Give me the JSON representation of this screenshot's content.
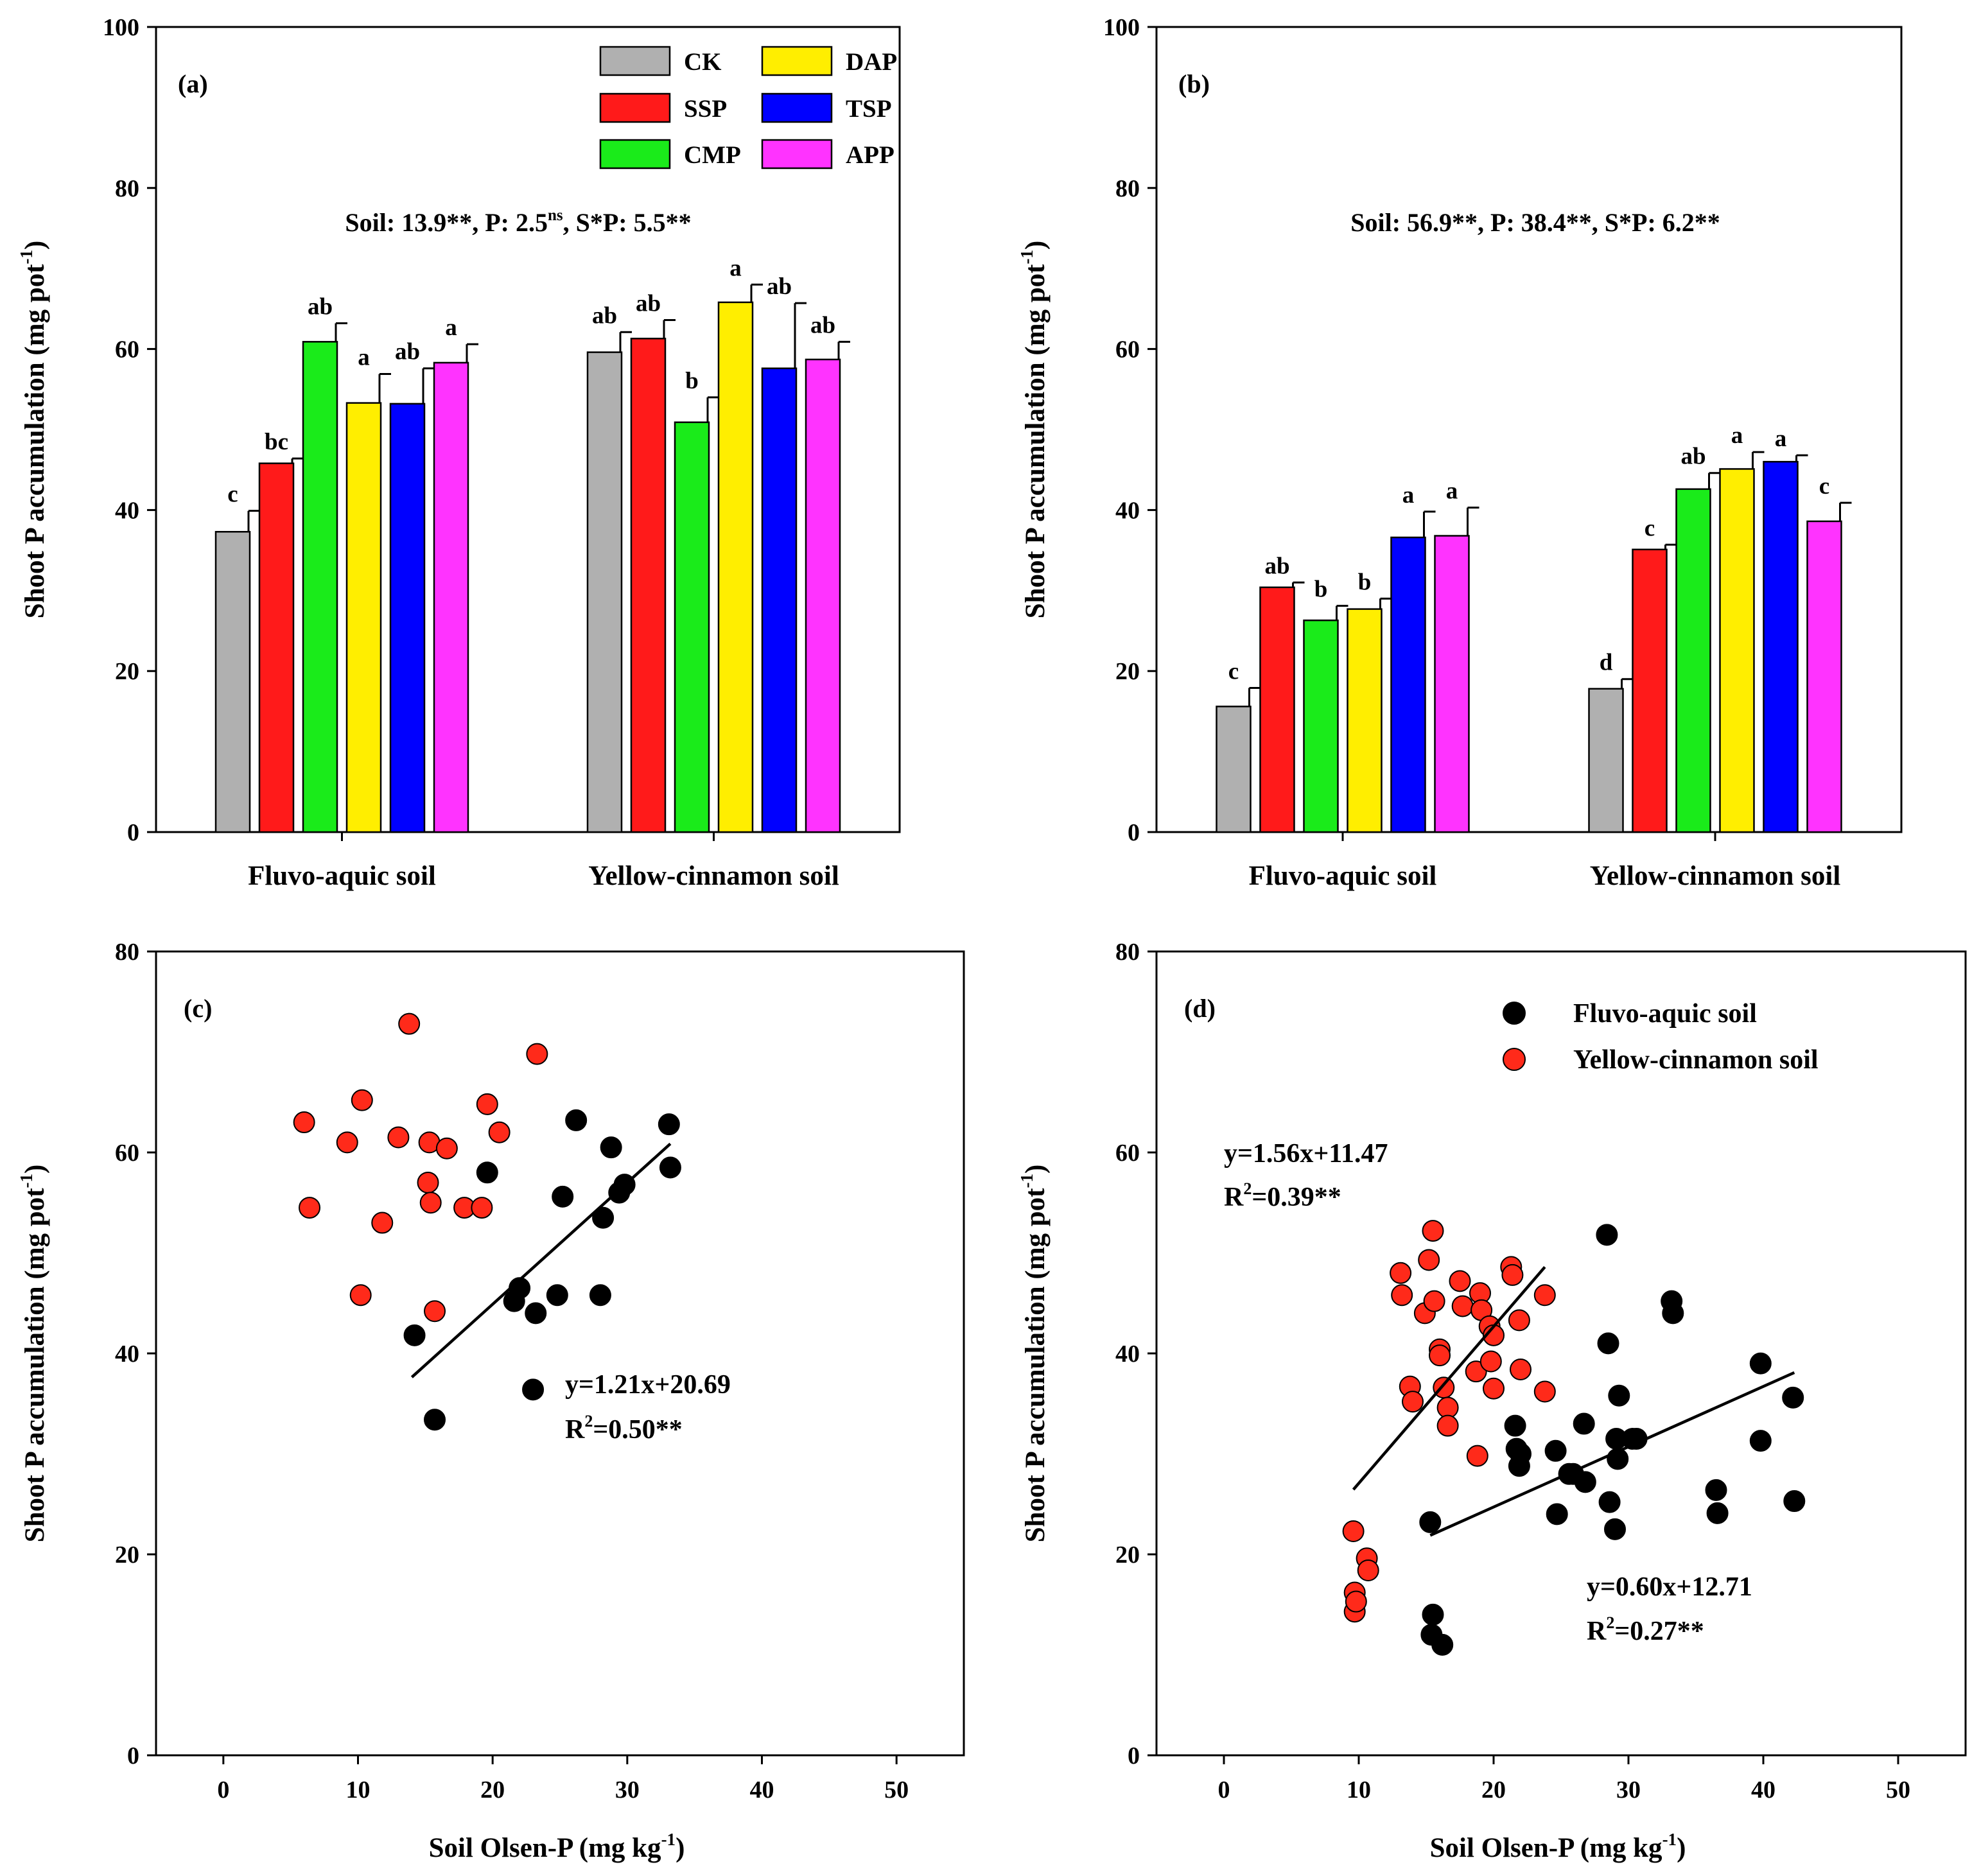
{
  "chart_data": [
    {
      "type": "bar",
      "panel_label": "(a)",
      "ylabel": "Shoot P accumulation (mg pot",
      "ylabel_sup": "-1",
      "ylabel_close": ")",
      "ylim": [
        0,
        100
      ],
      "yticks": [
        0,
        20,
        40,
        60,
        80,
        100
      ],
      "categories": [
        "Fluvo-aquic soil",
        "Yellow-cinnamon soil"
      ],
      "annotation": {
        "a": "Soil: 13.9**, P: 2.5",
        "sup": "ns",
        "b": ", S*P: 5.5**"
      },
      "legend": [
        {
          "name": "CK",
          "color": "#b0b0b0"
        },
        {
          "name": "DAP",
          "color": "#ffee00"
        },
        {
          "name": "SSP",
          "color": "#ff1a1a"
        },
        {
          "name": "TSP",
          "color": "#0000ff"
        },
        {
          "name": "CMP",
          "color": "#1aeb1a"
        },
        {
          "name": "APP",
          "color": "#ff33ff"
        }
      ],
      "series": [
        {
          "name": "CK",
          "color": "#b0b0b0",
          "values": [
            37.3,
            59.6
          ],
          "errors": [
            2.6,
            2.5
          ],
          "letters": [
            "c",
            "ab"
          ]
        },
        {
          "name": "SSP",
          "color": "#ff1a1a",
          "values": [
            45.8,
            61.3
          ],
          "errors": [
            0.6,
            2.3
          ],
          "letters": [
            "bc",
            "ab"
          ]
        },
        {
          "name": "CMP",
          "color": "#1aeb1a",
          "values": [
            60.9,
            50.9
          ],
          "errors": [
            2.3,
            3.1
          ],
          "letters": [
            "ab",
            "b"
          ]
        },
        {
          "name": "DAP",
          "color": "#ffee00",
          "values": [
            53.3,
            65.8
          ],
          "errors": [
            3.6,
            2.2
          ],
          "letters": [
            "a",
            "a"
          ]
        },
        {
          "name": "TSP",
          "color": "#0000ff",
          "values": [
            53.2,
            57.6
          ],
          "errors": [
            4.4,
            8.1
          ],
          "letters": [
            "ab",
            "ab"
          ]
        },
        {
          "name": "APP",
          "color": "#ff33ff",
          "values": [
            58.3,
            58.7
          ],
          "errors": [
            2.3,
            2.2
          ],
          "letters": [
            "a",
            "ab"
          ]
        }
      ]
    },
    {
      "type": "bar",
      "panel_label": "(b)",
      "ylabel": "Shoot P accumulation (mg pot",
      "ylabel_sup": "-1",
      "ylabel_close": ")",
      "ylim": [
        0,
        100
      ],
      "yticks": [
        0,
        20,
        40,
        60,
        80,
        100
      ],
      "categories": [
        "Fluvo-aquic soil",
        "Yellow-cinnamon soil"
      ],
      "annotation": {
        "a": "Soil: 56.9**, P: 38.4**, S*P: 6.2**",
        "sup": "",
        "b": ""
      },
      "series": [
        {
          "name": "CK",
          "color": "#b0b0b0",
          "values": [
            15.6,
            17.8
          ],
          "errors": [
            2.3,
            1.2
          ],
          "letters": [
            "c",
            "d"
          ]
        },
        {
          "name": "SSP",
          "color": "#ff1a1a",
          "values": [
            30.4,
            35.1
          ],
          "errors": [
            0.6,
            0.6
          ],
          "letters": [
            "ab",
            "c"
          ]
        },
        {
          "name": "CMP",
          "color": "#1aeb1a",
          "values": [
            26.3,
            42.6
          ],
          "errors": [
            1.8,
            2.0
          ],
          "letters": [
            "b",
            "ab"
          ]
        },
        {
          "name": "DAP",
          "color": "#ffee00",
          "values": [
            27.7,
            45.1
          ],
          "errors": [
            1.3,
            2.1
          ],
          "letters": [
            "b",
            "a"
          ]
        },
        {
          "name": "TSP",
          "color": "#0000ff",
          "values": [
            36.6,
            46.0
          ],
          "errors": [
            3.2,
            0.8
          ],
          "letters": [
            "a",
            "a"
          ]
        },
        {
          "name": "APP",
          "color": "#ff33ff",
          "values": [
            36.8,
            38.6
          ],
          "errors": [
            3.5,
            2.3
          ],
          "letters": [
            "a",
            "c"
          ]
        }
      ]
    },
    {
      "type": "scatter",
      "panel_label": "(c)",
      "xlabel": "Soil Olsen-P (mg kg",
      "xlabel_sup": "-1",
      "xlabel_close": ")",
      "ylabel": "Shoot P accumulation (mg pot",
      "ylabel_sup": "-1",
      "ylabel_close": ")",
      "xlim": [
        -5,
        55
      ],
      "ylim": [
        0,
        80
      ],
      "xticks": [
        0,
        10,
        20,
        30,
        40,
        50
      ],
      "yticks": [
        0,
        20,
        40,
        60,
        80
      ],
      "series": [
        {
          "name": "Yellow-cinnamon soil",
          "color": "#ff2a1a",
          "points": [
            [
              6.0,
              63.0
            ],
            [
              6.4,
              54.5
            ],
            [
              9.2,
              61.0
            ],
            [
              10.3,
              65.2
            ],
            [
              10.2,
              45.8
            ],
            [
              11.8,
              53.0
            ],
            [
              13.0,
              61.5
            ],
            [
              13.8,
              72.8
            ],
            [
              15.2,
              57.0
            ],
            [
              15.3,
              61.0
            ],
            [
              15.4,
              55.0
            ],
            [
              15.7,
              44.2
            ],
            [
              16.6,
              60.4
            ],
            [
              17.9,
              54.5
            ],
            [
              19.2,
              54.5
            ],
            [
              19.6,
              64.8
            ],
            [
              20.5,
              62.0
            ],
            [
              23.3,
              69.8
            ]
          ]
        },
        {
          "name": "Fluvo-aquic soil",
          "color": "#000000",
          "points": [
            [
              14.2,
              41.8
            ],
            [
              15.7,
              33.4
            ],
            [
              19.6,
              58.0
            ],
            [
              21.6,
              45.2
            ],
            [
              22.0,
              46.5
            ],
            [
              23.0,
              36.4
            ],
            [
              23.2,
              44.0
            ],
            [
              24.8,
              45.8
            ],
            [
              25.2,
              55.6
            ],
            [
              26.2,
              63.2
            ],
            [
              28.0,
              45.8
            ],
            [
              28.2,
              53.5
            ],
            [
              28.8,
              60.5
            ],
            [
              29.4,
              56.0
            ],
            [
              29.8,
              56.8
            ],
            [
              33.1,
              62.8
            ],
            [
              33.2,
              58.5
            ]
          ]
        }
      ],
      "fits": [
        {
          "color": "#000000",
          "slope": 1.21,
          "intercept": 20.69,
          "x_range": [
            14,
            33.2
          ],
          "eq": "y=1.21x+20.69",
          "r2_lead": "R",
          "r2_sup": "2",
          "r2_tail": "=0.50**"
        }
      ]
    },
    {
      "type": "scatter",
      "panel_label": "(d)",
      "xlabel": "Soil Olsen-P (mg kg",
      "xlabel_sup": "-1",
      "xlabel_close": ")",
      "ylabel": "Shoot P accumulation (mg pot",
      "ylabel_sup": "-1",
      "ylabel_close": ")",
      "xlim": [
        -5,
        55
      ],
      "ylim": [
        0,
        80
      ],
      "xticks": [
        0,
        10,
        20,
        30,
        40,
        50
      ],
      "yticks": [
        0,
        20,
        40,
        60,
        80
      ],
      "legend": [
        {
          "name": "Fluvo-aquic soil",
          "color": "#000000"
        },
        {
          "name": "Yellow-cinnamon soil",
          "color": "#ff2a1a"
        }
      ],
      "series": [
        {
          "name": "Fluvo-aquic soil",
          "color": "#000000",
          "points": [
            [
              15.3,
              23.2
            ],
            [
              15.4,
              12.0
            ],
            [
              15.5,
              14.0
            ],
            [
              16.2,
              11.0
            ],
            [
              21.6,
              32.8
            ],
            [
              21.7,
              30.5
            ],
            [
              21.9,
              28.8
            ],
            [
              22.0,
              30.0
            ],
            [
              24.6,
              30.3
            ],
            [
              24.7,
              24.0
            ],
            [
              25.6,
              28.0
            ],
            [
              25.9,
              28.0
            ],
            [
              26.7,
              33.0
            ],
            [
              26.8,
              27.2
            ],
            [
              28.4,
              51.8
            ],
            [
              28.5,
              41.0
            ],
            [
              28.6,
              25.2
            ],
            [
              29.0,
              22.5
            ],
            [
              29.1,
              31.5
            ],
            [
              29.2,
              29.5
            ],
            [
              29.3,
              35.8
            ],
            [
              30.3,
              31.5
            ],
            [
              30.6,
              31.5
            ],
            [
              33.2,
              45.2
            ],
            [
              33.3,
              44.0
            ],
            [
              36.5,
              26.4
            ],
            [
              36.6,
              24.1
            ],
            [
              39.8,
              39.0
            ],
            [
              39.8,
              31.3
            ],
            [
              42.2,
              35.6
            ],
            [
              42.3,
              25.3
            ]
          ]
        },
        {
          "name": "Yellow-cinnamon soil",
          "color": "#ff2a1a",
          "points": [
            [
              9.6,
              22.3
            ],
            [
              9.7,
              16.2
            ],
            [
              9.7,
              14.3
            ],
            [
              9.8,
              15.3
            ],
            [
              10.6,
              19.6
            ],
            [
              10.7,
              18.4
            ],
            [
              13.1,
              48.0
            ],
            [
              13.2,
              45.8
            ],
            [
              13.8,
              36.7
            ],
            [
              14.0,
              35.2
            ],
            [
              14.9,
              44.0
            ],
            [
              15.2,
              49.3
            ],
            [
              15.5,
              52.2
            ],
            [
              15.6,
              45.2
            ],
            [
              16.0,
              40.4
            ],
            [
              16.0,
              39.8
            ],
            [
              16.3,
              36.6
            ],
            [
              16.6,
              34.6
            ],
            [
              16.6,
              32.8
            ],
            [
              17.5,
              47.2
            ],
            [
              17.7,
              44.7
            ],
            [
              18.7,
              38.2
            ],
            [
              18.8,
              29.8
            ],
            [
              19.0,
              46.0
            ],
            [
              19.1,
              44.3
            ],
            [
              19.7,
              42.7
            ],
            [
              19.8,
              39.2
            ],
            [
              20.0,
              36.5
            ],
            [
              20.0,
              41.8
            ],
            [
              21.3,
              48.6
            ],
            [
              21.4,
              47.8
            ],
            [
              21.9,
              43.3
            ],
            [
              22.0,
              38.4
            ],
            [
              23.8,
              45.8
            ],
            [
              23.8,
              36.2
            ]
          ]
        }
      ],
      "fits": [
        {
          "color": "#ff2a1a",
          "slope": 1.56,
          "intercept": 11.47,
          "x_range": [
            9.6,
            23.8
          ],
          "eq": "y=1.56x+11.47",
          "r2_lead": "R",
          "r2_sup": "2",
          "r2_tail": "=0.39**"
        },
        {
          "color": "#000000",
          "slope": 0.6,
          "intercept": 12.71,
          "x_range": [
            15.3,
            42.3
          ],
          "eq": "y=0.60x+12.71",
          "r2_lead": "R",
          "r2_sup": "2",
          "r2_tail": "=0.27**"
        }
      ]
    }
  ]
}
